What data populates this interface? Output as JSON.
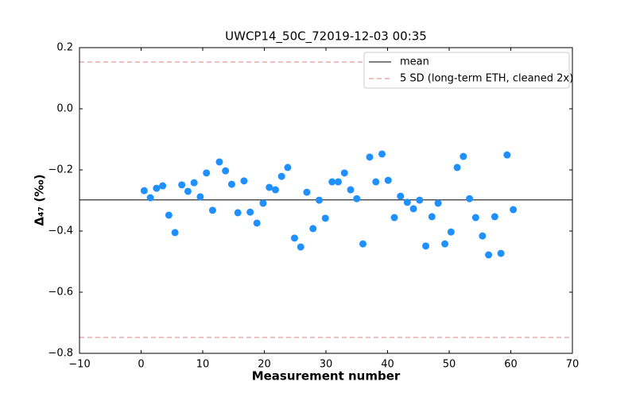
{
  "chart_data": {
    "type": "scatter",
    "title": "UWCP14_50C_72019-12-03 00:35",
    "xlabel": "Measurement number",
    "ylabel": "Δ₄₇ (‰)",
    "xlim": [
      -10,
      70
    ],
    "ylim": [
      -0.8,
      0.2
    ],
    "xticks": [
      {
        "value": -10,
        "label": "−10"
      },
      0,
      10,
      20,
      30,
      40,
      50,
      60,
      70
    ],
    "yticks": [
      {
        "value": -0.8,
        "label": "−0.8"
      },
      {
        "value": -0.6,
        "label": "−0.6"
      },
      {
        "value": -0.4,
        "label": "−0.4"
      },
      {
        "value": -0.2,
        "label": "−0.2"
      },
      {
        "value": 0,
        "label": "0.0"
      },
      0.2
    ],
    "series": [
      {
        "color": "#1e90ff",
        "x": [
          0.5,
          1.5,
          2.5,
          3.5,
          4.5,
          5.5,
          6.6,
          7.6,
          8.6,
          9.6,
          10.6,
          11.6,
          12.7,
          13.7,
          14.7,
          15.7,
          16.7,
          17.7,
          18.8,
          19.8,
          20.8,
          21.8,
          22.8,
          23.8,
          24.9,
          25.9,
          26.9,
          27.9,
          28.9,
          29.9,
          31.0,
          32.0,
          33.0,
          34.0,
          35.0,
          36.0,
          37.1,
          38.1,
          39.1,
          40.1,
          41.1,
          42.1,
          43.2,
          44.2,
          45.2,
          46.2,
          47.2,
          48.2,
          49.3,
          50.3,
          51.3,
          52.3,
          53.3,
          54.3,
          55.4,
          56.4,
          57.4,
          58.4,
          59.4,
          60.4
        ],
        "values": [
          -0.268,
          -0.291,
          -0.26,
          -0.252,
          -0.348,
          -0.405,
          -0.249,
          -0.27,
          -0.242,
          -0.288,
          -0.21,
          -0.332,
          -0.174,
          -0.203,
          -0.247,
          -0.34,
          -0.236,
          -0.338,
          -0.374,
          -0.309,
          -0.257,
          -0.265,
          -0.221,
          -0.192,
          -0.423,
          -0.452,
          -0.273,
          -0.392,
          -0.299,
          -0.358,
          -0.239,
          -0.239,
          -0.21,
          -0.265,
          -0.294,
          -0.442,
          -0.158,
          -0.239,
          -0.148,
          -0.234,
          -0.356,
          -0.286,
          -0.306,
          -0.327,
          -0.299,
          -0.449,
          -0.353,
          -0.309,
          -0.442,
          -0.403,
          -0.192,
          -0.156,
          -0.294,
          -0.356,
          -0.416,
          -0.478,
          -0.353,
          -0.473,
          -0.151,
          -0.33
        ]
      }
    ],
    "reference_lines": [
      {
        "name": "mean",
        "values": [
          -0.298
        ],
        "color": "#333333",
        "style": "solid"
      },
      {
        "name": "5 SD (long-term ETH, cleaned 2x)",
        "values": [
          0.153,
          -0.748
        ],
        "color": "#e89a9a",
        "style": "dashed"
      }
    ],
    "legend": "upper right"
  }
}
